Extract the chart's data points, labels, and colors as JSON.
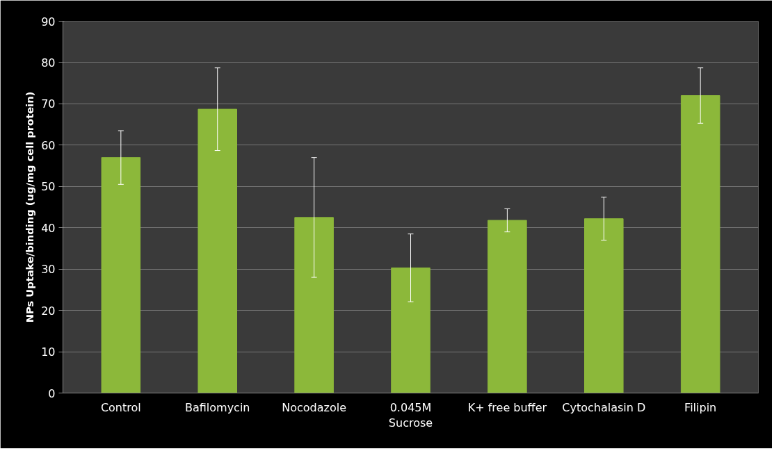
{
  "chart_data": {
    "type": "bar",
    "ylabel": "NPs Uptake/binding (ug/mg cell protein)",
    "categories": [
      "Control",
      "Bafilomycin",
      "Nocodazole",
      "0.045M\nSucrose",
      "K+ free buffer",
      "Cytochalasin D",
      "Filipin"
    ],
    "values": [
      57,
      68.7,
      42.5,
      30.3,
      41.8,
      42.2,
      72
    ],
    "errors": [
      6.5,
      10,
      14.5,
      8.2,
      2.8,
      5.2,
      6.7
    ],
    "color": "#8cb83a",
    "ylim": [
      0,
      90
    ],
    "yticks": [
      0,
      10,
      20,
      30,
      40,
      50,
      60,
      70,
      80,
      90
    ],
    "grid": "y"
  }
}
